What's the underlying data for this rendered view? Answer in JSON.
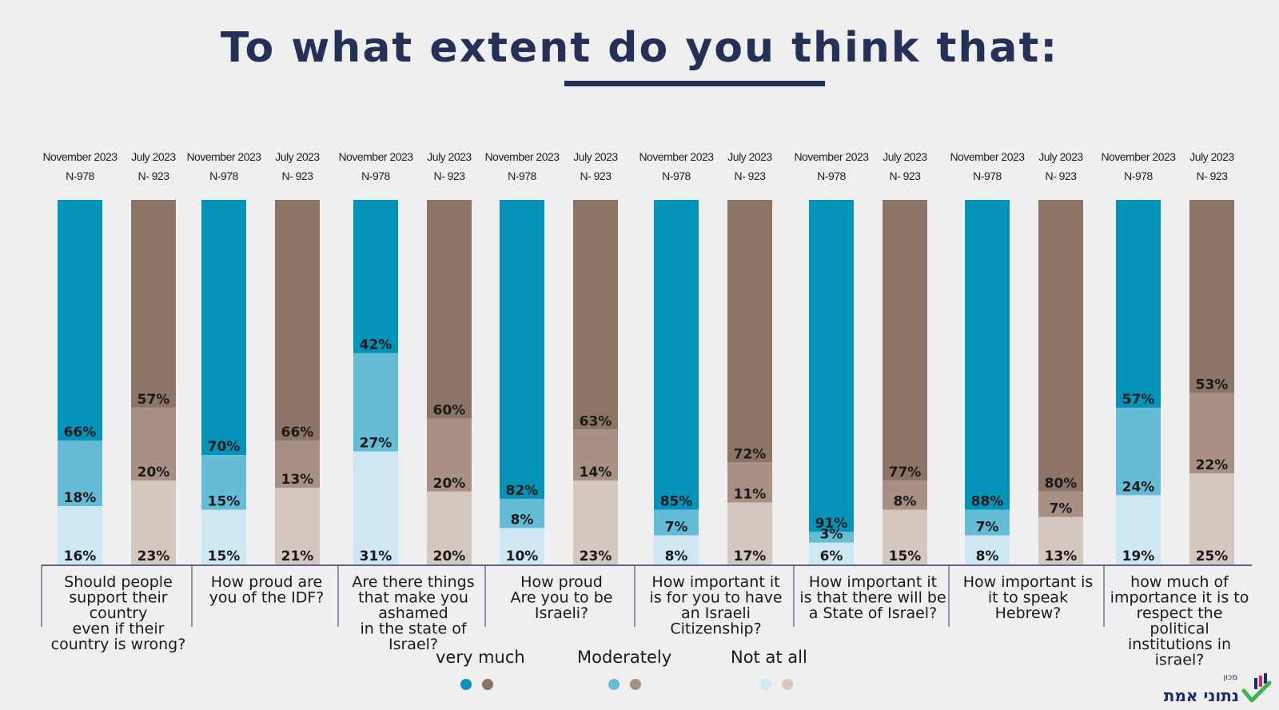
{
  "title": "To what extent do you think that:",
  "colors": {
    "nov_very": "#0393b9",
    "nov_moderately": "#65bcd6",
    "nov_not": "#cde8f3",
    "jul_very": "#8c7466",
    "jul_moderately": "#a89184",
    "jul_not": "#d5c8c1",
    "axis": "#2d3866",
    "title": "#243058"
  },
  "legend": [
    {
      "label": "very much",
      "colors": [
        "#0393b9",
        "#8c7466"
      ]
    },
    {
      "label": "Moderately",
      "colors": [
        "#65bcd6",
        "#a89184"
      ]
    },
    {
      "label": "Not at all",
      "colors": [
        "#cde8f3",
        "#d5c8c1"
      ]
    }
  ],
  "logo": {
    "text": "נתוני אמת",
    "small": "מכון"
  },
  "chart_data": {
    "type": "bar",
    "stacked": true,
    "percent_scale": true,
    "stack_order_bottom_to_top": [
      "Not at all",
      "Moderately",
      "very much"
    ],
    "groups": [
      {
        "question": [
          "Should people",
          "support their",
          "country",
          "even if their",
          "country is wrong?"
        ],
        "bars": [
          {
            "period": "November 2023",
            "n": "N-978",
            "series": "nov",
            "very": 66,
            "moderately": 18,
            "not": 16
          },
          {
            "period": "July 2023",
            "n": "N- 923",
            "series": "jul",
            "very": 57,
            "moderately": 20,
            "not": 23
          }
        ]
      },
      {
        "question": [
          "How proud are",
          "you of the IDF?"
        ],
        "bars": [
          {
            "period": "November 2023",
            "n": "N-978",
            "series": "nov",
            "very": 70,
            "moderately": 15,
            "not": 15
          },
          {
            "period": "July 2023",
            "n": "N- 923",
            "series": "jul",
            "very": 66,
            "moderately": 13,
            "not": 21
          }
        ]
      },
      {
        "question": [
          "Are there things",
          "that make you",
          "ashamed",
          "in the state of",
          "Israel?"
        ],
        "bars": [
          {
            "period": "November 2023",
            "n": "N-978",
            "series": "nov",
            "very": 42,
            "moderately": 27,
            "not": 31
          },
          {
            "period": "July 2023",
            "n": "N- 923",
            "series": "jul",
            "very": 60,
            "moderately": 20,
            "not": 20
          }
        ]
      },
      {
        "question": [
          "How proud",
          "Are you to be",
          "Israeli?"
        ],
        "bars": [
          {
            "period": "November 2023",
            "n": "N-978",
            "series": "nov",
            "very": 82,
            "moderately": 8,
            "not": 10
          },
          {
            "period": "July 2023",
            "n": "N- 923",
            "series": "jul",
            "very": 63,
            "moderately": 14,
            "not": 23
          }
        ]
      },
      {
        "question": [
          "How important it",
          "is for you to have",
          "an Israeli",
          "Citizenship?"
        ],
        "bars": [
          {
            "period": "November 2023",
            "n": "N-978",
            "series": "nov",
            "very": 85,
            "moderately": 7,
            "not": 8
          },
          {
            "period": "July 2023",
            "n": "N- 923",
            "series": "jul",
            "very": 72,
            "moderately": 11,
            "not": 17
          }
        ]
      },
      {
        "question": [
          "How important it",
          "is that there will be",
          "a State of Israel?"
        ],
        "bars": [
          {
            "period": "November 2023",
            "n": "N-978",
            "series": "nov",
            "very": 91,
            "moderately": 3,
            "not": 6
          },
          {
            "period": "July 2023",
            "n": "N- 923",
            "series": "jul",
            "very": 77,
            "moderately": 8,
            "not": 15
          }
        ]
      },
      {
        "question": [
          "How important is",
          "it to speak",
          "Hebrew?"
        ],
        "bars": [
          {
            "period": "November 2023",
            "n": "N-978",
            "series": "nov",
            "very": 88,
            "moderately": 7,
            "not": 8
          },
          {
            "period": "July 2023",
            "n": "N- 923",
            "series": "jul",
            "very": 80,
            "moderately": 7,
            "not": 13
          }
        ]
      },
      {
        "question": [
          "how much of",
          "importance it is to",
          "respect the",
          "political",
          "institutions in",
          "israel?"
        ],
        "bars": [
          {
            "period": "November 2023",
            "n": "N-978",
            "series": "nov",
            "very": 57,
            "moderately": 24,
            "not": 19
          },
          {
            "period": "July 2023",
            "n": "N- 923",
            "series": "jul",
            "very": 53,
            "moderately": 22,
            "not": 25
          }
        ]
      }
    ]
  }
}
